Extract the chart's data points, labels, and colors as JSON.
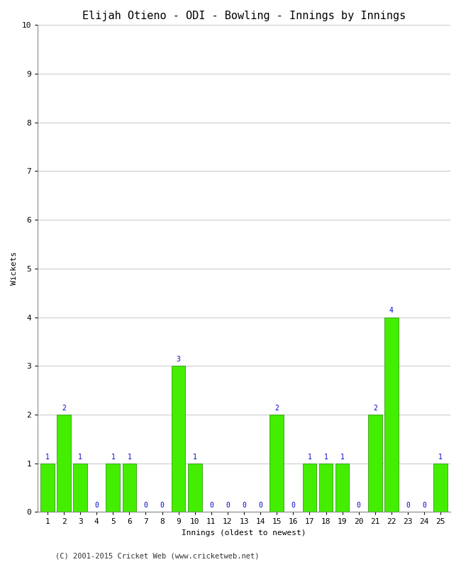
{
  "title": "Elijah Otieno - ODI - Bowling - Innings by Innings",
  "xlabel": "Innings (oldest to newest)",
  "ylabel": "Wickets",
  "x_labels": [
    "1",
    "2",
    "3",
    "4",
    "5",
    "6",
    "7",
    "8",
    "9",
    "10",
    "11",
    "12",
    "13",
    "14",
    "15",
    "16",
    "17",
    "18",
    "19",
    "20",
    "21",
    "22",
    "23",
    "24",
    "25"
  ],
  "x_positions": [
    1,
    2,
    3,
    4,
    5,
    6,
    7,
    8,
    9,
    10,
    11,
    12,
    13,
    14,
    15,
    16,
    17,
    18,
    19,
    20,
    21,
    22,
    23,
    24,
    25
  ],
  "wickets": [
    1,
    2,
    1,
    0,
    1,
    1,
    0,
    0,
    3,
    1,
    0,
    0,
    0,
    0,
    2,
    0,
    1,
    1,
    1,
    0,
    2,
    4,
    0,
    0,
    1
  ],
  "ylim": [
    0,
    10
  ],
  "yticks": [
    0,
    1,
    2,
    3,
    4,
    5,
    6,
    7,
    8,
    9,
    10
  ],
  "bar_color": "#44ee00",
  "bar_edge_color": "#228800",
  "label_color": "#0000cc",
  "background_color": "#ffffff",
  "grid_color": "#cccccc",
  "title_fontsize": 11,
  "axis_label_fontsize": 8,
  "tick_fontsize": 8,
  "bar_label_fontsize": 7,
  "footer": "(C) 2001-2015 Cricket Web (www.cricketweb.net)",
  "footer_fontsize": 7.5
}
